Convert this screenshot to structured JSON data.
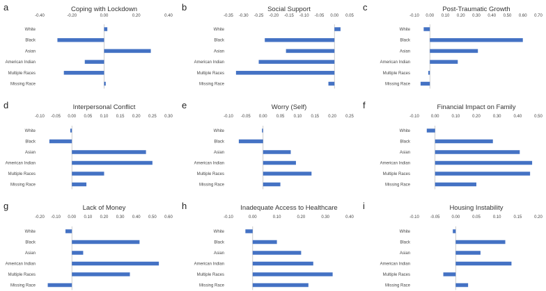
{
  "categories": [
    "White",
    "Black",
    "Asian",
    "American Indian",
    "Multiple Races",
    "Missing Race"
  ],
  "bar_color": "#4472C4",
  "chart_data": [
    {
      "type": "bar",
      "orientation": "horizontal",
      "letter": "a",
      "title": "Coping with Lockdown",
      "values": [
        0.02,
        -0.29,
        0.29,
        -0.12,
        -0.25,
        0.01
      ],
      "xlim": [
        -0.4,
        0.4
      ],
      "ticks": [
        "-0.40",
        "-0.20",
        "0.00",
        "0.20",
        "0.40"
      ]
    },
    {
      "type": "bar",
      "orientation": "horizontal",
      "letter": "b",
      "title": "Social Support",
      "values": [
        0.02,
        -0.23,
        -0.16,
        -0.25,
        -0.325,
        -0.02
      ],
      "xlim": [
        -0.35,
        0.05
      ],
      "ticks": [
        "-0.35",
        "-0.30",
        "-0.25",
        "-0.20",
        "-0.15",
        "-0.10",
        "-0.05",
        "0.00",
        "0.05"
      ]
    },
    {
      "type": "bar",
      "orientation": "horizontal",
      "letter": "c",
      "title": "Post-Traumatic Growth",
      "values": [
        -0.04,
        0.6,
        0.31,
        0.18,
        -0.01,
        -0.06
      ],
      "xlim": [
        -0.1,
        0.7
      ],
      "ticks": [
        "-0.10",
        "0.00",
        "0.10",
        "0.20",
        "0.30",
        "0.40",
        "0.50",
        "0.60",
        "0.70"
      ]
    },
    {
      "type": "bar",
      "orientation": "horizontal",
      "letter": "d",
      "title": "Interpersonal Conflict",
      "values": [
        -0.005,
        -0.07,
        0.23,
        0.25,
        0.1,
        0.045
      ],
      "xlim": [
        -0.1,
        0.3
      ],
      "ticks": [
        "-0.10",
        "-0.05",
        "0.00",
        "0.05",
        "0.10",
        "0.15",
        "0.20",
        "0.25",
        "0.30"
      ]
    },
    {
      "type": "bar",
      "orientation": "horizontal",
      "letter": "e",
      "title": "Worry (Self)",
      "values": [
        -0.003,
        -0.07,
        0.08,
        0.095,
        0.14,
        0.05
      ],
      "xlim": [
        -0.1,
        0.25
      ],
      "ticks": [
        "-0.10",
        "-0.05",
        "0.00",
        "0.05",
        "0.10",
        "0.15",
        "0.20",
        "0.25"
      ]
    },
    {
      "type": "bar",
      "orientation": "horizontal",
      "letter": "f",
      "title": "Financial Impact on Family",
      "values": [
        -0.04,
        0.28,
        0.41,
        0.47,
        0.46,
        0.2
      ],
      "xlim": [
        -0.1,
        0.5
      ],
      "ticks": [
        "-0.10",
        "0.00",
        "0.10",
        "0.20",
        "0.30",
        "0.40",
        "0.50"
      ]
    },
    {
      "type": "bar",
      "orientation": "horizontal",
      "letter": "g",
      "title": "Lack of Money",
      "values": [
        -0.04,
        0.42,
        0.07,
        0.54,
        0.36,
        -0.15
      ],
      "xlim": [
        -0.2,
        0.6
      ],
      "ticks": [
        "-0.20",
        "-0.10",
        "0.00",
        "0.10",
        "0.20",
        "0.30",
        "0.40",
        "0.50",
        "0.60"
      ]
    },
    {
      "type": "bar",
      "orientation": "horizontal",
      "letter": "h",
      "title": "Inadequate Access to Healthcare",
      "values": [
        -0.03,
        0.1,
        0.2,
        0.25,
        0.33,
        0.23
      ],
      "xlim": [
        -0.1,
        0.4
      ],
      "ticks": [
        "-0.10",
        "0.00",
        "0.10",
        "0.20",
        "0.30",
        "0.40"
      ]
    },
    {
      "type": "bar",
      "orientation": "horizontal",
      "letter": "i",
      "title": "Housing Instability",
      "values": [
        -0.007,
        0.12,
        0.06,
        0.135,
        -0.03,
        0.03
      ],
      "xlim": [
        -0.1,
        0.2
      ],
      "ticks": [
        "-0.10",
        "-0.05",
        "0.00",
        "0.05",
        "0.10",
        "0.15",
        "0.20"
      ]
    }
  ]
}
